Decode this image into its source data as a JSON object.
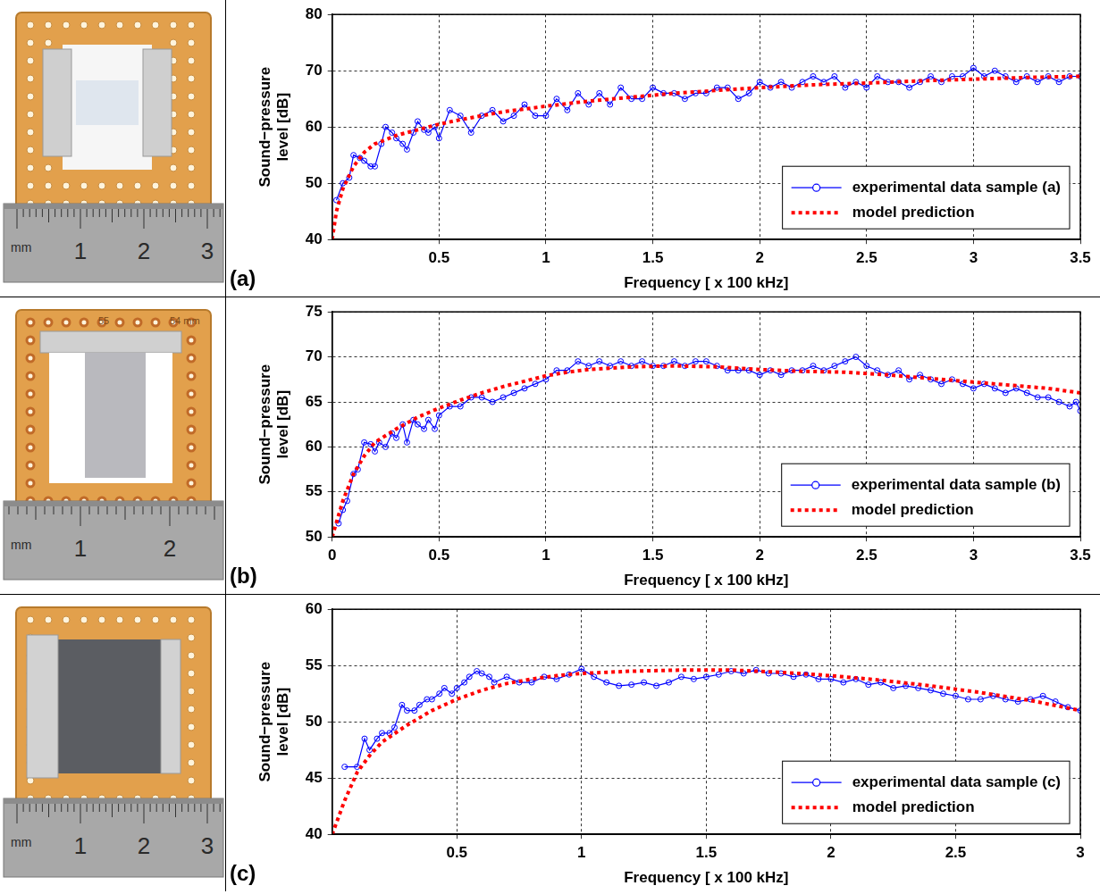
{
  "chart_data": [
    {
      "type": "line",
      "x_label": "Frequency [ x 100 kHz]",
      "y_label": "Sound−pressure level [dB]",
      "xlim": [
        0,
        3.5
      ],
      "xticks": [
        0.5,
        1,
        1.5,
        2,
        2.5,
        3,
        3.5
      ],
      "ylim": [
        40,
        80
      ],
      "yticks": [
        40,
        50,
        60,
        70,
        80
      ],
      "grid": true,
      "legend": "lower right",
      "series": [
        {
          "name": "experimental data sample (a)",
          "color": "#0000ff",
          "marker": "circle",
          "line_style": "solid",
          "x": [
            0.02,
            0.05,
            0.08,
            0.1,
            0.13,
            0.15,
            0.18,
            0.2,
            0.23,
            0.25,
            0.28,
            0.3,
            0.33,
            0.35,
            0.38,
            0.4,
            0.43,
            0.45,
            0.48,
            0.5,
            0.55,
            0.6,
            0.65,
            0.7,
            0.75,
            0.8,
            0.85,
            0.9,
            0.95,
            1.0,
            1.05,
            1.1,
            1.15,
            1.2,
            1.25,
            1.3,
            1.35,
            1.4,
            1.45,
            1.5,
            1.55,
            1.6,
            1.65,
            1.7,
            1.75,
            1.8,
            1.85,
            1.9,
            1.95,
            2.0,
            2.05,
            2.1,
            2.15,
            2.2,
            2.25,
            2.3,
            2.35,
            2.4,
            2.45,
            2.5,
            2.55,
            2.6,
            2.65,
            2.7,
            2.75,
            2.8,
            2.85,
            2.9,
            2.95,
            3.0,
            3.05,
            3.1,
            3.15,
            3.2,
            3.25,
            3.3,
            3.35,
            3.4,
            3.45,
            3.5
          ],
          "values": [
            47,
            50,
            51,
            55,
            54.5,
            54,
            53,
            53,
            57,
            60,
            59,
            58,
            57,
            56,
            59,
            61,
            59.5,
            59,
            60,
            58,
            63,
            62,
            59,
            62,
            63,
            61,
            62,
            64,
            62,
            62,
            65,
            63,
            66,
            64,
            66,
            64,
            67,
            65,
            65,
            67,
            66,
            66,
            65,
            66,
            66,
            67,
            67,
            65,
            66,
            68,
            67,
            68,
            67,
            68,
            69,
            68,
            69,
            67,
            68,
            67,
            69,
            68,
            68,
            67,
            68,
            69,
            68,
            69,
            69,
            70.5,
            69,
            70,
            69,
            68,
            69,
            68,
            69,
            68,
            69,
            69
          ]
        },
        {
          "name": "model prediction",
          "color": "#ff0000",
          "marker": "none",
          "line_style": "dotted",
          "x": [
            0,
            0.02,
            0.05,
            0.1,
            0.15,
            0.2,
            0.3,
            0.4,
            0.5,
            0.6,
            0.7,
            0.8,
            0.9,
            1.0,
            1.2,
            1.4,
            1.6,
            1.8,
            2.0,
            2.25,
            2.5,
            2.75,
            3.0,
            3.25,
            3.5
          ],
          "values": [
            40,
            45,
            49,
            53,
            55.5,
            57,
            58.5,
            59.5,
            60.5,
            61.3,
            62,
            62.7,
            63.2,
            63.7,
            64.6,
            65.3,
            66,
            66.5,
            67,
            67.5,
            67.8,
            68.2,
            68.5,
            68.8,
            69
          ]
        }
      ]
    },
    {
      "type": "line",
      "x_label": "Frequency [ x 100 kHz]",
      "y_label": "Sound−pressure level [dB]",
      "xlim": [
        0,
        3.5
      ],
      "xticks": [
        0,
        0.5,
        1,
        1.5,
        2,
        2.5,
        3,
        3.5
      ],
      "ylim": [
        50,
        75
      ],
      "yticks": [
        50,
        55,
        60,
        65,
        70,
        75
      ],
      "grid": true,
      "legend": "lower right",
      "series": [
        {
          "name": "experimental data sample (b)",
          "color": "#0000ff",
          "marker": "circle",
          "line_style": "solid",
          "x": [
            0.03,
            0.05,
            0.07,
            0.1,
            0.12,
            0.15,
            0.18,
            0.2,
            0.22,
            0.25,
            0.28,
            0.3,
            0.33,
            0.35,
            0.38,
            0.4,
            0.43,
            0.45,
            0.48,
            0.5,
            0.55,
            0.6,
            0.65,
            0.7,
            0.75,
            0.8,
            0.85,
            0.9,
            0.95,
            1.0,
            1.05,
            1.1,
            1.15,
            1.2,
            1.25,
            1.3,
            1.35,
            1.4,
            1.45,
            1.5,
            1.55,
            1.6,
            1.65,
            1.7,
            1.75,
            1.8,
            1.85,
            1.9,
            1.95,
            2.0,
            2.05,
            2.1,
            2.15,
            2.2,
            2.25,
            2.3,
            2.35,
            2.4,
            2.45,
            2.5,
            2.55,
            2.6,
            2.65,
            2.7,
            2.75,
            2.8,
            2.85,
            2.9,
            2.95,
            3.0,
            3.05,
            3.1,
            3.15,
            3.2,
            3.25,
            3.3,
            3.35,
            3.4,
            3.45,
            3.48,
            3.5
          ],
          "values": [
            51.5,
            53,
            54,
            57,
            57.5,
            60.5,
            60.3,
            59.5,
            60.5,
            60,
            61.5,
            61,
            62.5,
            60.5,
            63,
            62.5,
            62,
            63,
            62,
            63.5,
            64.5,
            64.5,
            65.5,
            65.5,
            65,
            65.5,
            66,
            66.5,
            67,
            67.5,
            68.5,
            68.5,
            69.5,
            69,
            69.5,
            69,
            69.5,
            69,
            69.5,
            69,
            69,
            69.5,
            69,
            69.5,
            69.5,
            69,
            68.5,
            68.5,
            68.5,
            68,
            68.5,
            68,
            68.5,
            68.5,
            69,
            68.5,
            69,
            69.5,
            70,
            69,
            68.5,
            68,
            68.5,
            67.5,
            68,
            67.5,
            67,
            67.5,
            67,
            66.5,
            67,
            66.5,
            66,
            66.5,
            66,
            65.5,
            65.5,
            65,
            64.5,
            65,
            64
          ]
        },
        {
          "name": "model prediction",
          "color": "#ff0000",
          "marker": "none",
          "line_style": "dotted",
          "x": [
            0,
            0.05,
            0.1,
            0.15,
            0.2,
            0.3,
            0.4,
            0.5,
            0.6,
            0.7,
            0.8,
            0.9,
            1.0,
            1.1,
            1.2,
            1.4,
            1.6,
            1.8,
            2.0,
            2.2,
            2.4,
            2.6,
            2.8,
            3.0,
            3.2,
            3.35,
            3.5
          ],
          "values": [
            50,
            54,
            57,
            59,
            60.5,
            62,
            63.3,
            64.3,
            65.2,
            66,
            66.7,
            67.3,
            67.9,
            68.3,
            68.6,
            68.9,
            69,
            68.9,
            68.6,
            68.4,
            68.3,
            68,
            67.6,
            67.2,
            66.8,
            66.5,
            66
          ]
        }
      ]
    },
    {
      "type": "line",
      "x_label": "Frequency [ x 100 kHz]",
      "y_label": "Sound−pressure level [dB]",
      "xlim": [
        0,
        3
      ],
      "xticks": [
        0.5,
        1,
        1.5,
        2,
        2.5,
        3
      ],
      "ylim": [
        40,
        60
      ],
      "yticks": [
        40,
        45,
        50,
        55,
        60
      ],
      "grid": true,
      "legend": "lower right",
      "series": [
        {
          "name": "experimental data sample (c)",
          "color": "#0000ff",
          "marker": "circle",
          "line_style": "solid",
          "x": [
            0.05,
            0.1,
            0.13,
            0.15,
            0.18,
            0.2,
            0.23,
            0.25,
            0.28,
            0.3,
            0.33,
            0.35,
            0.38,
            0.4,
            0.43,
            0.45,
            0.48,
            0.5,
            0.53,
            0.55,
            0.58,
            0.6,
            0.63,
            0.65,
            0.7,
            0.75,
            0.8,
            0.85,
            0.9,
            0.95,
            1.0,
            1.05,
            1.1,
            1.15,
            1.2,
            1.25,
            1.3,
            1.35,
            1.4,
            1.45,
            1.5,
            1.55,
            1.6,
            1.65,
            1.7,
            1.75,
            1.8,
            1.85,
            1.9,
            1.95,
            2.0,
            2.05,
            2.1,
            2.15,
            2.2,
            2.25,
            2.3,
            2.35,
            2.4,
            2.45,
            2.5,
            2.55,
            2.6,
            2.65,
            2.7,
            2.75,
            2.8,
            2.85,
            2.9,
            2.95,
            3.0
          ],
          "values": [
            46,
            46,
            48.5,
            47.5,
            48.5,
            49,
            49,
            49.5,
            51.5,
            51,
            51,
            51.5,
            52,
            52,
            52.5,
            53,
            52.5,
            53,
            53.5,
            54,
            54.5,
            54.3,
            54,
            53.5,
            54,
            53.5,
            53.5,
            54,
            53.8,
            54.2,
            54.7,
            54,
            53.5,
            53.2,
            53.3,
            53.5,
            53.2,
            53.5,
            54,
            53.8,
            54,
            54.2,
            54.5,
            54.3,
            54.6,
            54.3,
            54.3,
            54,
            54.2,
            53.8,
            53.8,
            53.5,
            53.8,
            53.3,
            53.5,
            53,
            53.2,
            53,
            52.8,
            52.5,
            52.3,
            52,
            52,
            52.3,
            52,
            51.8,
            52,
            52.3,
            51.8,
            51.3,
            51
          ]
        },
        {
          "name": "model prediction",
          "color": "#ff0000",
          "marker": "none",
          "line_style": "dotted",
          "x": [
            0,
            0.05,
            0.1,
            0.15,
            0.2,
            0.3,
            0.4,
            0.5,
            0.6,
            0.7,
            0.8,
            0.9,
            1.0,
            1.2,
            1.4,
            1.6,
            1.8,
            2.0,
            2.2,
            2.4,
            2.6,
            2.8,
            3.0
          ],
          "values": [
            40,
            43,
            45.5,
            47,
            48.2,
            49.7,
            51,
            52,
            52.8,
            53.4,
            53.8,
            54.1,
            54.3,
            54.5,
            54.6,
            54.6,
            54.4,
            54.1,
            53.7,
            53.2,
            52.6,
            51.9,
            51
          ]
        }
      ]
    }
  ],
  "photos": [
    {
      "label": "(a)",
      "ruler": [
        "mm",
        "1",
        "2",
        "3"
      ]
    },
    {
      "label": "(b)",
      "ruler": [
        "mm",
        "1",
        "2"
      ],
      "board_text": [
        "55",
        "54 mm"
      ]
    },
    {
      "label": "(c)",
      "ruler": [
        "mm",
        "1",
        "2",
        "3"
      ]
    }
  ]
}
